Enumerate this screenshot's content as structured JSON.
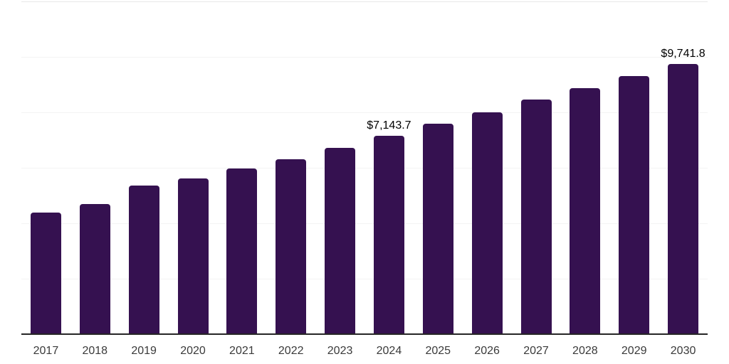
{
  "chart_data": {
    "type": "bar",
    "title": "",
    "xlabel": "",
    "ylabel": "",
    "categories": [
      "2017",
      "2018",
      "2019",
      "2020",
      "2021",
      "2022",
      "2023",
      "2024",
      "2025",
      "2026",
      "2027",
      "2028",
      "2029",
      "2030"
    ],
    "values": [
      4380,
      4690,
      5350,
      5610,
      5970,
      6320,
      6710,
      7143.7,
      7600,
      8010,
      8450,
      8860,
      9320,
      9741.8
    ],
    "value_labels": [
      null,
      null,
      null,
      null,
      null,
      null,
      null,
      "$7,143.7",
      null,
      null,
      null,
      null,
      null,
      "$9,741.8"
    ],
    "ylim": [
      0,
      12000
    ],
    "gridline_interval": 2000,
    "grid": "horizontal",
    "y_tick_labels_shown": false,
    "legend_position": "none",
    "colors": {
      "bar": "#351150",
      "axis_line": "#262626",
      "gridline": "#f3f3f3",
      "top_gridline": "#e7e7e7",
      "tick_label": "#3a3a3a",
      "value_label": "#000000",
      "background": "#ffffff"
    }
  }
}
